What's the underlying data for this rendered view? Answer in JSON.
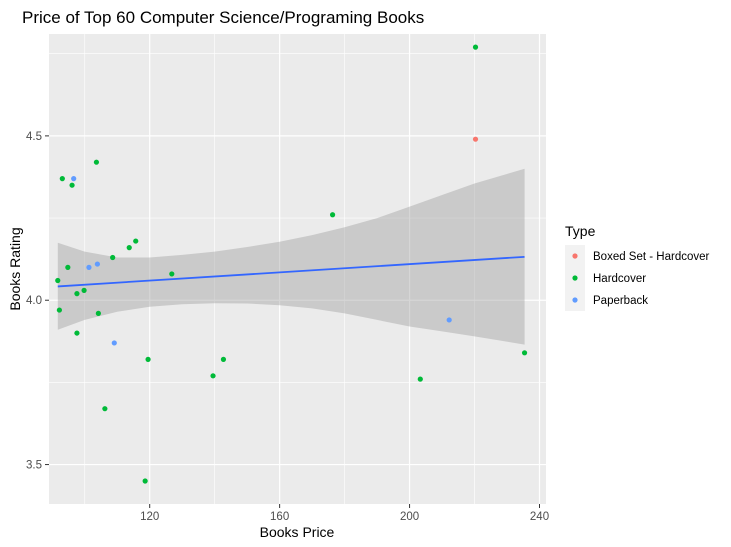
{
  "chart_data": {
    "type": "scatter",
    "title": "Price of Top 60 Computer Science/Programing Books",
    "xlabel": "Books Price",
    "ylabel": "Books Rating",
    "xlim": [
      89,
      242
    ],
    "ylim": [
      3.38,
      4.81
    ],
    "x_ticks": [
      120,
      160,
      200,
      240
    ],
    "y_ticks": [
      3.5,
      4.0,
      4.5
    ],
    "grid": true,
    "legend": {
      "title": "Type",
      "position": "right",
      "entries": [
        {
          "label": "Boxed Set - Hardcover",
          "color": "#F8766D"
        },
        {
          "label": "Hardcover",
          "color": "#00BA38"
        },
        {
          "label": "Paperback",
          "color": "#619CFF"
        }
      ]
    },
    "series": [
      {
        "name": "Boxed Set - Hardcover",
        "color": "#F8766D",
        "points": [
          [
            220.3,
            4.49
          ]
        ]
      },
      {
        "name": "Hardcover",
        "color": "#00BA38",
        "points": [
          [
            220.3,
            4.77
          ],
          [
            103.6,
            4.42
          ],
          [
            93.1,
            4.37
          ],
          [
            96.1,
            4.35
          ],
          [
            176.3,
            4.26
          ],
          [
            115.7,
            4.18
          ],
          [
            113.7,
            4.16
          ],
          [
            108.6,
            4.13
          ],
          [
            94.8,
            4.1
          ],
          [
            126.8,
            4.08
          ],
          [
            91.7,
            4.06
          ],
          [
            99.8,
            4.03
          ],
          [
            97.6,
            4.02
          ],
          [
            92.2,
            3.97
          ],
          [
            104.2,
            3.96
          ],
          [
            97.6,
            3.9
          ],
          [
            235.4,
            3.84
          ],
          [
            119.5,
            3.82
          ],
          [
            142.7,
            3.82
          ],
          [
            139.5,
            3.77
          ],
          [
            203.3,
            3.76
          ],
          [
            106.2,
            3.67
          ],
          [
            118.6,
            3.45
          ]
        ]
      },
      {
        "name": "Paperback",
        "color": "#619CFF",
        "points": [
          [
            96.6,
            4.37
          ],
          [
            103.9,
            4.11
          ],
          [
            101.3,
            4.1
          ],
          [
            212.2,
            3.94
          ],
          [
            109.1,
            3.87
          ]
        ]
      }
    ],
    "trend_line": {
      "method": "lm",
      "color": "#3366FF",
      "x_range": [
        91.7,
        235.4
      ],
      "y_range": [
        4.042,
        4.132
      ],
      "ci_lower": [
        [
          91.7,
          3.91
        ],
        [
          100,
          3.94
        ],
        [
          110,
          3.965
        ],
        [
          120,
          3.98
        ],
        [
          130,
          3.988
        ],
        [
          140,
          3.991
        ],
        [
          150,
          3.99
        ],
        [
          160,
          3.985
        ],
        [
          170,
          3.975
        ],
        [
          180,
          3.96
        ],
        [
          190,
          3.94
        ],
        [
          200,
          3.92
        ],
        [
          210,
          3.905
        ],
        [
          220,
          3.89
        ],
        [
          235.4,
          3.865
        ]
      ],
      "ci_upper": [
        [
          91.7,
          4.175
        ],
        [
          100,
          4.148
        ],
        [
          110,
          4.13
        ],
        [
          120,
          4.13
        ],
        [
          130,
          4.138
        ],
        [
          140,
          4.148
        ],
        [
          150,
          4.162
        ],
        [
          160,
          4.178
        ],
        [
          170,
          4.198
        ],
        [
          180,
          4.222
        ],
        [
          190,
          4.25
        ],
        [
          200,
          4.285
        ],
        [
          210,
          4.32
        ],
        [
          220,
          4.355
        ],
        [
          235.4,
          4.4
        ]
      ],
      "band_color": "#999999"
    }
  }
}
